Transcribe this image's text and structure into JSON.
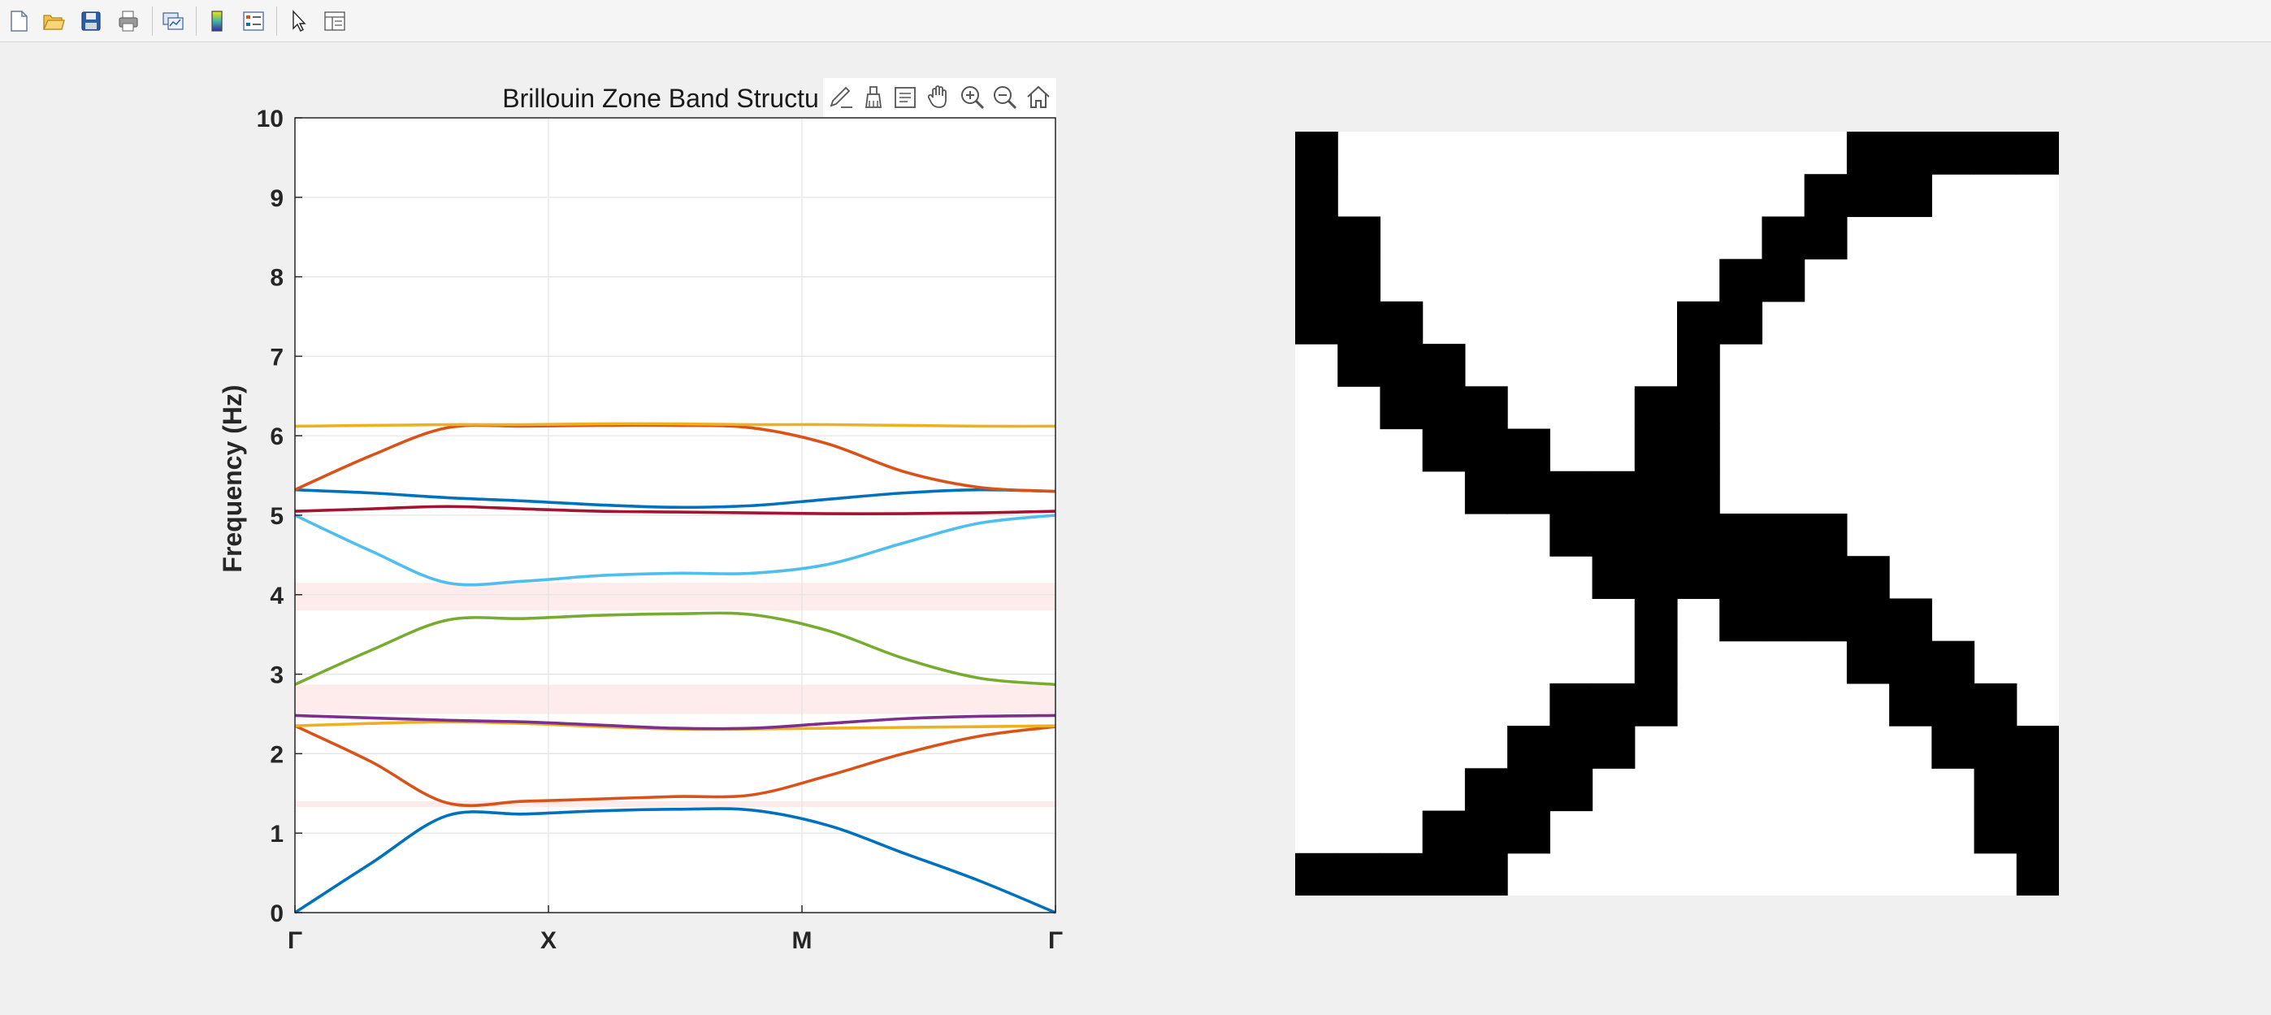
{
  "toolbar": {
    "buttons": [
      {
        "name": "new-figure-button",
        "icon": "new-file-icon"
      },
      {
        "name": "open-file-button",
        "icon": "folder-open-icon"
      },
      {
        "name": "save-figure-button",
        "icon": "floppy-disk-icon"
      },
      {
        "name": "print-figure-button",
        "icon": "printer-icon"
      },
      {
        "name": "link-plot-button",
        "icon": "link-plot-icon"
      },
      {
        "name": "insert-colorbar-button",
        "icon": "colorbar-icon"
      },
      {
        "name": "insert-legend-button",
        "icon": "legend-icon"
      },
      {
        "name": "edit-plot-button",
        "icon": "pointer-arrow-icon"
      },
      {
        "name": "property-inspector-button",
        "icon": "property-inspector-icon"
      }
    ]
  },
  "axes_toolbar": [
    "export-icon",
    "brush-icon",
    "data-tips-icon",
    "pan-hand-icon",
    "zoom-in-icon",
    "zoom-out-icon",
    "home-icon"
  ],
  "colors": {
    "c1": "#0072bd",
    "c2": "#d95319",
    "c3": "#edb120",
    "c4": "#7e2f8e",
    "c5": "#77ac30",
    "c6": "#4dbeee",
    "c7": "#a2142f",
    "gap": "#fde4e4"
  },
  "chart_data": {
    "type": "line",
    "title": "Brillouin Zone Band Structu",
    "xlabel": "",
    "ylabel": "Frequency (Hz)",
    "xticks": [
      "Γ",
      "X",
      "M",
      "Γ"
    ],
    "ylim": [
      0,
      10
    ],
    "yticks": [
      0,
      1,
      2,
      3,
      4,
      5,
      6,
      7,
      8,
      9,
      10
    ],
    "grid": true,
    "x": [
      0,
      0.5,
      1,
      1.5,
      2,
      2.5,
      3,
      3.5,
      4,
      4.5,
      5,
      5.5,
      6
    ],
    "band_gaps": [
      [
        1.33,
        1.4
      ],
      [
        2.5,
        2.87
      ],
      [
        3.8,
        4.15
      ]
    ],
    "series": [
      {
        "color": "c1",
        "values": [
          0.0,
          0.62,
          1.22,
          1.24,
          1.28,
          1.3,
          1.29,
          1.1,
          0.75,
          0.4,
          0.0,
          0.0,
          0.0
        ]
      },
      {
        "color": "c2",
        "values": [
          2.35,
          1.9,
          1.38,
          1.4,
          1.43,
          1.46,
          1.48,
          1.72,
          2.0,
          2.22,
          2.34,
          2.34,
          2.34
        ]
      },
      {
        "color": "c3",
        "values": [
          2.35,
          2.38,
          2.4,
          2.38,
          2.34,
          2.31,
          2.31,
          2.32,
          2.33,
          2.34,
          2.35,
          2.35,
          2.35
        ]
      },
      {
        "color": "c4",
        "values": [
          2.48,
          2.45,
          2.42,
          2.4,
          2.36,
          2.32,
          2.32,
          2.38,
          2.44,
          2.47,
          2.48,
          2.48,
          2.48
        ]
      },
      {
        "color": "c5",
        "values": [
          2.87,
          3.3,
          3.68,
          3.7,
          3.74,
          3.76,
          3.75,
          3.55,
          3.2,
          2.95,
          2.87,
          2.87,
          2.87
        ]
      },
      {
        "color": "c6",
        "values": [
          5.0,
          4.55,
          4.15,
          4.17,
          4.24,
          4.27,
          4.27,
          4.38,
          4.65,
          4.9,
          5.0,
          5.0,
          5.0
        ]
      },
      {
        "color": "c7",
        "values": [
          5.05,
          5.08,
          5.11,
          5.08,
          5.05,
          5.04,
          5.03,
          5.02,
          5.02,
          5.03,
          5.05,
          5.05,
          5.05
        ]
      },
      {
        "color": "c1",
        "values": [
          5.32,
          5.28,
          5.22,
          5.18,
          5.13,
          5.1,
          5.12,
          5.2,
          5.28,
          5.32,
          5.3,
          5.3,
          5.3
        ]
      },
      {
        "color": "c2",
        "values": [
          5.32,
          5.75,
          6.1,
          6.12,
          6.13,
          6.13,
          6.1,
          5.9,
          5.55,
          5.35,
          5.3,
          5.3,
          5.3
        ]
      },
      {
        "color": "c3",
        "values": [
          6.12,
          6.13,
          6.14,
          6.14,
          6.15,
          6.15,
          6.14,
          6.14,
          6.13,
          6.12,
          6.12,
          6.12,
          6.12
        ]
      }
    ]
  },
  "unit_cell": {
    "grid_size": 18,
    "rows": [
      "100000000000011111",
      "100000000000111000",
      "110000000001100000",
      "110000000011000000",
      "111000000110000000",
      "011100000100000000",
      "001110001100000000",
      "000111001100000000",
      "000011111100000000",
      "000000111111100000",
      "000000011111110000",
      "000000001011111000",
      "000000001000011100",
      "000000111000001110",
      "000001110000000111",
      "000011100000000011",
      "000111000000000011",
      "111110000000000001"
    ]
  }
}
